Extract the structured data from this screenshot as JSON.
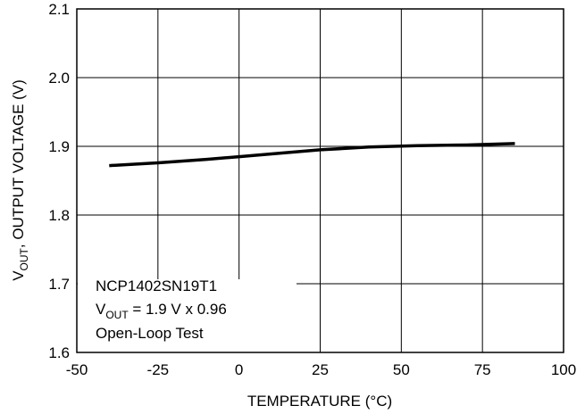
{
  "chart_data": {
    "type": "line",
    "title": "",
    "xlabel": "TEMPERATURE (°C)",
    "ylabel": {
      "main": "V",
      "sub": "OUT",
      "rest": ", OUTPUT VOLTAGE (V)"
    },
    "xlim": [
      -50,
      100
    ],
    "ylim": [
      1.6,
      2.1
    ],
    "x_ticks": [
      "-50",
      "-25",
      "0",
      "25",
      "50",
      "75",
      "100"
    ],
    "y_ticks": [
      "1.6",
      "1.7",
      "1.8",
      "1.9",
      "2.0",
      "2.1"
    ],
    "grid": true,
    "annotation": {
      "line1": "NCP1402SN19T1",
      "line2_main": "V",
      "line2_sub": "OUT",
      "line2_rest": " = 1.9 V x 0.96",
      "line3": "Open-Loop Test"
    },
    "series": [
      {
        "color": "#000000",
        "x": [
          -40,
          -25,
          -10,
          0,
          10,
          25,
          40,
          55,
          70,
          85
        ],
        "y": [
          1.872,
          1.876,
          1.881,
          1.885,
          1.889,
          1.895,
          1.899,
          1.901,
          1.902,
          1.904
        ]
      }
    ]
  }
}
